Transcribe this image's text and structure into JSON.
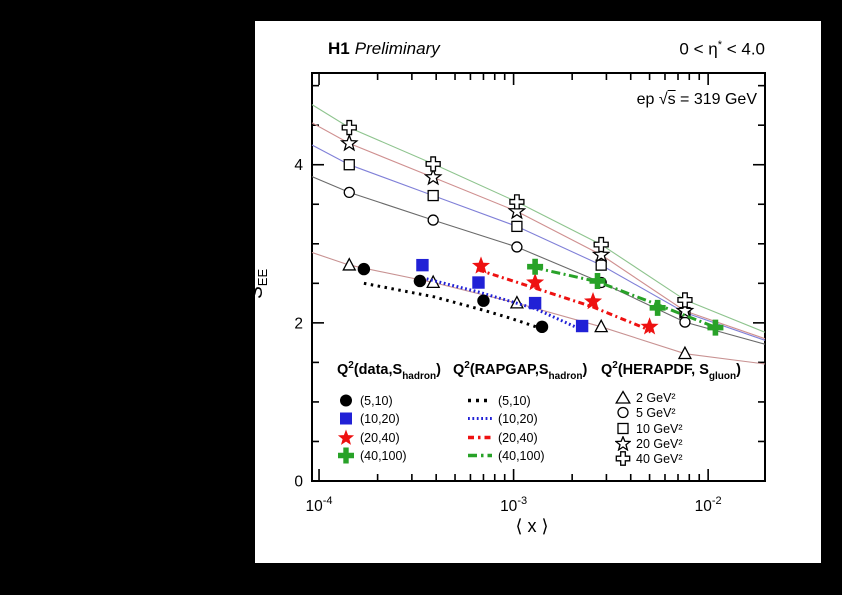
{
  "header": {
    "experiment": "H1",
    "status": "Preliminary",
    "eta_pre": "0 < η",
    "eta_sup": "*",
    "eta_post": " < 4.0"
  },
  "beam": {
    "pre": "ep ",
    "sqrt": "√",
    "s": "s",
    "post": " = 319 GeV"
  },
  "axes": {
    "xlabel": "⟨ x ⟩",
    "ylabel_base": "S",
    "ylabel_sub": "EE"
  },
  "legend": {
    "col1": {
      "header": {
        "base": "Q",
        "sup": "2",
        "body": "(data,S",
        "sub": "hadron",
        "close": ")"
      },
      "items": [
        {
          "marker": "filled-circle",
          "color": "#000000",
          "label": "(5,10)"
        },
        {
          "marker": "filled-square",
          "color": "#2121d6",
          "label": "(10,20)"
        },
        {
          "marker": "filled-star",
          "color": "#ee1111",
          "label": "(20,40)"
        },
        {
          "marker": "filled-plus",
          "color": "#28a228",
          "label": "(40,100)"
        }
      ]
    },
    "col2": {
      "header": {
        "base": "Q",
        "sup": "2",
        "body": "(RAPGAP,S",
        "sub": "hadron",
        "close": ")"
      },
      "items": [
        {
          "line_style": "dotted-wide",
          "color": "#000000",
          "label": "(5,10)"
        },
        {
          "line_style": "dotted-dense",
          "color": "#2121d6",
          "label": "(10,20)"
        },
        {
          "line_style": "dash-dot",
          "color": "#ee1111",
          "label": "(20,40)"
        },
        {
          "line_style": "long-dash-dot",
          "color": "#28a228",
          "label": "(40,100)"
        }
      ]
    },
    "col3": {
      "header": {
        "base": "Q",
        "sup": "2",
        "body": "(HERAPDF, S",
        "sub": "gluon",
        "close": ")"
      },
      "items": [
        {
          "marker": "open-triangle",
          "label": "2 GeV²"
        },
        {
          "marker": "open-circle",
          "label": "5 GeV²"
        },
        {
          "marker": "open-square",
          "label": "10 GeV²"
        },
        {
          "marker": "open-star",
          "label": "20 GeV²"
        },
        {
          "marker": "open-plus",
          "label": "40 GeV²"
        }
      ]
    }
  },
  "chart_data": {
    "type": "scatter+line",
    "title": "H1 Preliminary",
    "xlabel": "⟨ x ⟩",
    "ylabel": "S_EE",
    "x_scale": "log",
    "xlim": [
      9.2e-05,
      0.0196
    ],
    "ylim": [
      0,
      5.16
    ],
    "grid": false,
    "x_major_ticks": [
      {
        "v": 0.0001,
        "base": "10",
        "exp": "-4"
      },
      {
        "v": 0.001,
        "base": "10",
        "exp": "-3"
      },
      {
        "v": 0.01,
        "base": "10",
        "exp": "-2"
      }
    ],
    "y_major_ticks": [
      {
        "v": 0,
        "label": "0"
      },
      {
        "v": 2,
        "label": "2"
      },
      {
        "v": 4,
        "label": "4"
      }
    ],
    "y_minor_step": 0.5,
    "data_series": [
      {
        "name": "(5,10)",
        "marker": "circle",
        "color": "#000000",
        "err": 0.07,
        "points": [
          [
            0.00017,
            2.68
          ],
          [
            0.00033,
            2.53
          ],
          [
            0.0007,
            2.28
          ],
          [
            0.0014,
            1.95
          ]
        ]
      },
      {
        "name": "(10,20)",
        "marker": "square",
        "color": "#2121d6",
        "err": 0.07,
        "points": [
          [
            0.00034,
            2.73
          ],
          [
            0.00066,
            2.51
          ],
          [
            0.00129,
            2.25
          ],
          [
            0.00225,
            1.96
          ]
        ]
      },
      {
        "name": "(20,40)",
        "marker": "star",
        "color": "#ee1111",
        "err": 0.08,
        "points": [
          [
            0.00068,
            2.72
          ],
          [
            0.00129,
            2.51
          ],
          [
            0.00256,
            2.27
          ],
          [
            0.005,
            1.95
          ]
        ]
      },
      {
        "name": "(40,100)",
        "marker": "plus",
        "color": "#28a228",
        "err": 0.08,
        "points": [
          [
            0.00129,
            2.71
          ],
          [
            0.0027,
            2.53
          ],
          [
            0.0055,
            2.19
          ],
          [
            0.0109,
            1.94
          ]
        ]
      }
    ],
    "rapgap_series": [
      {
        "name": "(5,10)",
        "color": "#000000",
        "dash": "2.5 4.5",
        "points": [
          [
            0.00017,
            2.5
          ],
          [
            0.00039,
            2.33
          ],
          [
            0.0007,
            2.16
          ],
          [
            0.00096,
            2.06
          ],
          [
            0.00142,
            1.92
          ]
        ]
      },
      {
        "name": "(10,20)",
        "color": "#2121d6",
        "dash": "1.8 2.6",
        "points": [
          [
            0.00034,
            2.57
          ],
          [
            0.00066,
            2.39
          ],
          [
            0.00129,
            2.18
          ],
          [
            0.0023,
            1.9
          ]
        ]
      },
      {
        "name": "(20,40)",
        "color": "#ee1111",
        "dash": "6 3.5 2 3.5",
        "points": [
          [
            0.00066,
            2.67
          ],
          [
            0.00129,
            2.44
          ],
          [
            0.00256,
            2.2
          ],
          [
            0.0051,
            1.9
          ]
        ]
      },
      {
        "name": "(40,100)",
        "color": "#28a228",
        "dash": "9 3.5 2 3.5",
        "points": [
          [
            0.00127,
            2.7
          ],
          [
            0.0027,
            2.52
          ],
          [
            0.0055,
            2.23
          ],
          [
            0.011,
            1.94
          ]
        ]
      }
    ],
    "herapdf_x": [
      0.000143,
      0.000386,
      0.00104,
      0.00282,
      0.0076
    ],
    "herapdf_err": 0.05,
    "herapdf_series": [
      {
        "name": "2 GeV²",
        "marker": "triangle",
        "line_color": "#c89292",
        "y": [
          2.73,
          2.51,
          2.25,
          1.95,
          1.61
        ],
        "edge_left": [
          9.2e-05,
          2.89
        ],
        "edge_right": [
          0.0196,
          1.48
        ]
      },
      {
        "name": "5 GeV²",
        "marker": "circle",
        "line_color": "#6a6a6a",
        "y": [
          3.65,
          3.3,
          2.96,
          2.51,
          2.01
        ],
        "edge_left": [
          9.2e-05,
          3.85
        ],
        "edge_right": [
          0.0196,
          1.73
        ]
      },
      {
        "name": "10 GeV²",
        "marker": "square",
        "line_color": "#8080d8",
        "y": [
          4.0,
          3.61,
          3.22,
          2.73,
          2.13
        ],
        "edge_left": [
          9.2e-05,
          4.25
        ],
        "edge_right": [
          0.0196,
          1.78
        ]
      },
      {
        "name": "20 GeV²",
        "marker": "star",
        "line_color": "#cf9090",
        "y": [
          4.27,
          3.84,
          3.41,
          2.86,
          2.15
        ],
        "edge_left": [
          9.2e-05,
          4.53
        ],
        "edge_right": [
          0.0196,
          1.8
        ]
      },
      {
        "name": "40 GeV²",
        "marker": "plus",
        "line_color": "#8ec48e",
        "y": [
          4.47,
          4.01,
          3.53,
          2.99,
          2.29
        ],
        "edge_left": [
          9.2e-05,
          4.76
        ],
        "edge_right": [
          0.0196,
          1.88
        ]
      }
    ]
  }
}
